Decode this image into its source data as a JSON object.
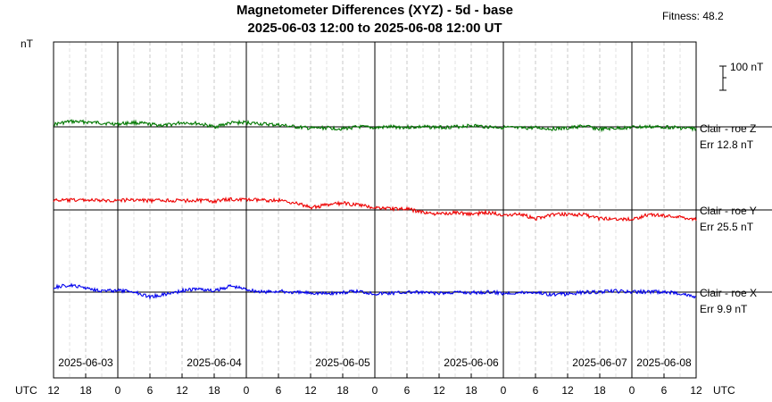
{
  "chart_data": {
    "type": "line",
    "title": "Magnetometer Differences (XYZ) - 5d - base",
    "subtitle": "2025-06-03 12:00 to 2025-06-08 12:00 UT",
    "fitness_label": "Fitness: 48.2",
    "ylabel": "nT",
    "scale_bar_label": "100 nT",
    "scale_bar_value": 100,
    "x_range_hours": [
      0,
      120
    ],
    "xlabel_left": "UTC",
    "xlabel_right": "UTC",
    "hour_tick_labels": [
      "12",
      "18",
      "0",
      "6",
      "12",
      "18",
      "0",
      "6",
      "12",
      "18",
      "0",
      "6",
      "12",
      "18",
      "0",
      "6",
      "12",
      "18",
      "0",
      "6",
      "12"
    ],
    "day_labels": [
      "2025-06-03",
      "2025-06-04",
      "2025-06-05",
      "2025-06-06",
      "2025-06-07",
      "2025-06-08"
    ],
    "grid": true,
    "series": [
      {
        "name": "Clair - roe Z",
        "error_label": "Err 12.8 nT",
        "color": "#007700",
        "baseline_nT": 0,
        "offsets_nT": [
          10,
          22,
          20,
          16,
          12,
          18,
          10,
          6,
          18,
          14,
          0,
          16,
          18,
          12,
          8,
          0,
          -6,
          -4,
          -8,
          0,
          -4,
          0,
          -2,
          0,
          -2,
          0,
          6,
          0,
          -2,
          -6,
          -4,
          -8,
          -6,
          4,
          -10,
          -6,
          -2,
          0,
          0,
          -4,
          -8
        ]
      },
      {
        "name": "Clair - roe Y",
        "error_label": "Err 25.5 nT",
        "color": "#ee0000",
        "baseline_nT": 0,
        "offsets_nT": [
          40,
          40,
          42,
          38,
          40,
          42,
          38,
          40,
          38,
          40,
          36,
          44,
          42,
          40,
          40,
          30,
          10,
          20,
          28,
          20,
          10,
          6,
          4,
          -10,
          -18,
          -10,
          -18,
          -10,
          -20,
          -16,
          -36,
          -20,
          -18,
          -20,
          -36,
          -36,
          -40,
          -20,
          -24,
          -30,
          -40
        ]
      },
      {
        "name": "Clair - roe X",
        "error_label": "Err 9.9 nT",
        "color": "#0000ee",
        "baseline_nT": 0,
        "offsets_nT": [
          20,
          28,
          18,
          6,
          6,
          2,
          -20,
          -8,
          6,
          14,
          4,
          26,
          12,
          0,
          4,
          -2,
          -2,
          -6,
          -2,
          4,
          -6,
          -4,
          0,
          -2,
          -6,
          0,
          -2,
          0,
          -4,
          -2,
          0,
          -10,
          -8,
          0,
          0,
          4,
          0,
          2,
          0,
          -4,
          -22
        ]
      }
    ]
  }
}
